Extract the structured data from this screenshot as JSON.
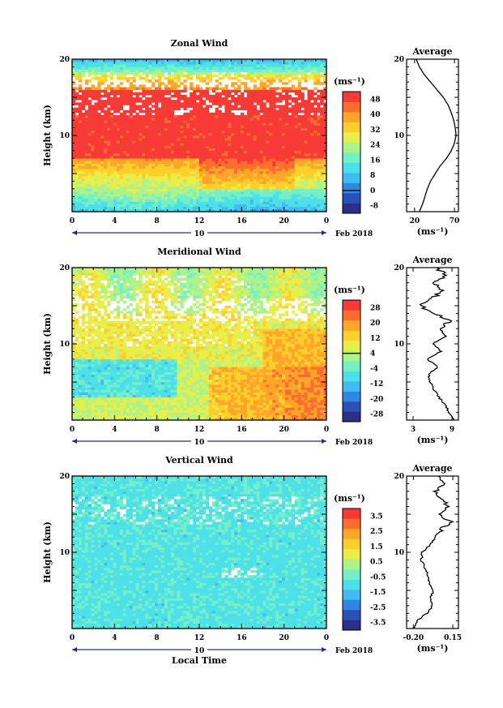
{
  "chart_data": [
    {
      "type": "heatmap",
      "title": "Zonal Wind",
      "ylabel": "Height (km)",
      "ylim": [
        0,
        20
      ],
      "yticks": [
        10,
        20
      ],
      "xlim": [
        0,
        24
      ],
      "xticks": [
        "0",
        "4",
        "8",
        "12",
        "16",
        "20",
        "0"
      ],
      "date_label": "10",
      "month_label": "Feb 2018",
      "colorbar": {
        "unit": "(ms⁻¹)",
        "levels": [
          48,
          40,
          32,
          24,
          16,
          8,
          0,
          -8
        ],
        "tick_labels": [
          "48",
          "40",
          "32",
          "24",
          "16",
          "8",
          "0",
          "-8"
        ]
      },
      "profile": {
        "title": "Average",
        "xticks": [
          "20",
          "70"
        ],
        "xlim": [
          10,
          75
        ],
        "unit": "(ms⁻¹)",
        "height": [
          0,
          1,
          2,
          3,
          4,
          5,
          6,
          7,
          8,
          9,
          10,
          11,
          12,
          13,
          14,
          15,
          16,
          17,
          18,
          19,
          20
        ],
        "value": [
          26,
          30,
          33,
          36,
          40,
          46,
          52,
          60,
          66,
          70,
          72,
          71,
          69,
          66,
          62,
          56,
          48,
          40,
          32,
          26,
          22
        ]
      }
    },
    {
      "type": "heatmap",
      "title": "Meridional Wind",
      "ylabel": "Height (km)",
      "ylim": [
        0,
        20
      ],
      "yticks": [
        10,
        20
      ],
      "xlim": [
        0,
        24
      ],
      "xticks": [
        "0",
        "4",
        "8",
        "12",
        "16",
        "20",
        "0"
      ],
      "date_label": "10",
      "month_label": "Feb 2018",
      "colorbar": {
        "unit": "(ms⁻¹)",
        "levels": [
          28,
          20,
          12,
          4,
          -4,
          -12,
          -20,
          -28
        ],
        "tick_labels": [
          "28",
          "20",
          "12",
          "4",
          "-4",
          "-12",
          "-20",
          "-28"
        ]
      },
      "profile": {
        "title": "Average",
        "xticks": [
          "3",
          "9"
        ],
        "xlim": [
          2,
          10
        ],
        "unit": "(ms⁻¹)",
        "height": [
          0,
          1,
          2,
          3,
          4,
          5,
          6,
          7,
          8,
          9,
          10,
          11,
          12,
          13,
          14,
          15,
          16,
          17,
          18,
          19,
          20
        ],
        "value": [
          9.2,
          8.6,
          7.9,
          7.0,
          6.2,
          5.6,
          5.4,
          6.8,
          5.2,
          7.3,
          6.1,
          8.0,
          7.2,
          8.7,
          6.3,
          4.1,
          6.0,
          7.5,
          6.1,
          8.0,
          6.6
        ]
      }
    },
    {
      "type": "heatmap",
      "title": "Vertical Wind",
      "ylabel": "Height (km)",
      "ylim": [
        0,
        20
      ],
      "yticks": [
        10,
        20
      ],
      "xlim": [
        0,
        24
      ],
      "xticks": [
        "0",
        "4",
        "8",
        "12",
        "16",
        "20",
        "0"
      ],
      "date_label": "10",
      "month_label": "Feb 2018",
      "xlabel": "Local Time",
      "colorbar": {
        "unit": "(ms⁻¹)",
        "levels": [
          3.5,
          2.5,
          1.5,
          0.5,
          -0.5,
          -1.5,
          -2.5,
          -3.5
        ],
        "tick_labels": [
          "3.5",
          "2.5",
          "1.5",
          "0.5",
          "-0.5",
          "-1.5",
          "-2.5",
          "-3.5"
        ]
      },
      "profile": {
        "title": "Average",
        "xticks": [
          "-0.20",
          "0.15"
        ],
        "xlim": [
          -0.26,
          0.2
        ],
        "unit": "(ms⁻¹)",
        "height": [
          0,
          1,
          2,
          3,
          4,
          5,
          6,
          7,
          8,
          9,
          10,
          11,
          12,
          13,
          14,
          15,
          16,
          17,
          18,
          19,
          20
        ],
        "value": [
          -0.2,
          -0.17,
          -0.08,
          -0.03,
          -0.05,
          -0.02,
          -0.06,
          -0.07,
          -0.1,
          -0.13,
          -0.12,
          -0.05,
          0.0,
          0.05,
          0.13,
          0.02,
          0.1,
          0.05,
          0.0,
          0.08,
          0.02
        ]
      }
    }
  ]
}
